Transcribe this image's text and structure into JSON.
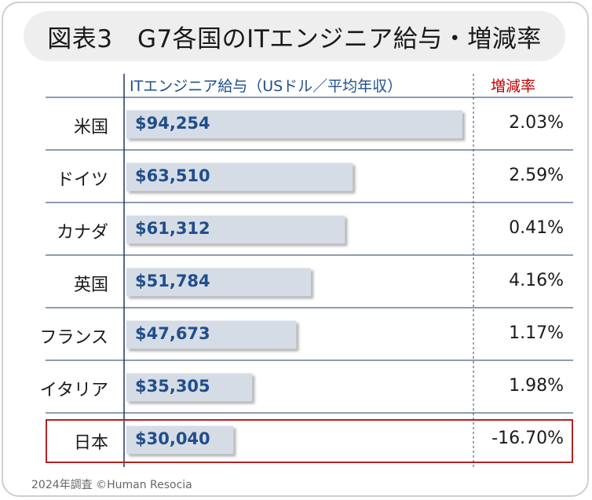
{
  "title": "図表3　G7各国のITエンジニア給与・増減率",
  "source": "2024年調査 ©Human Resocia",
  "chart_data": {
    "type": "bar",
    "orientation": "horizontal",
    "xlabel": "ITエンジニア給与（USドル／平均年収）",
    "rate_header": "増減率",
    "categories": [
      "米国",
      "ドイツ",
      "カナダ",
      "英国",
      "フランス",
      "イタリア",
      "日本"
    ],
    "values": [
      94254,
      63510,
      61312,
      51784,
      47673,
      35305,
      30040
    ],
    "value_labels": [
      "$94,254",
      "$63,510",
      "$61,312",
      "$51,784",
      "$47,673",
      "$35,305",
      "$30,040"
    ],
    "rates": [
      "2.03%",
      "2.59%",
      "0.41%",
      "4.16%",
      "1.17%",
      "1.98%",
      "-16.70%"
    ],
    "highlighted_category": "日本",
    "colors": {
      "bar": "#d6dce5",
      "value_text": "#1f4e8c",
      "rate_header": "#c00000",
      "highlight": "#b22222"
    }
  }
}
